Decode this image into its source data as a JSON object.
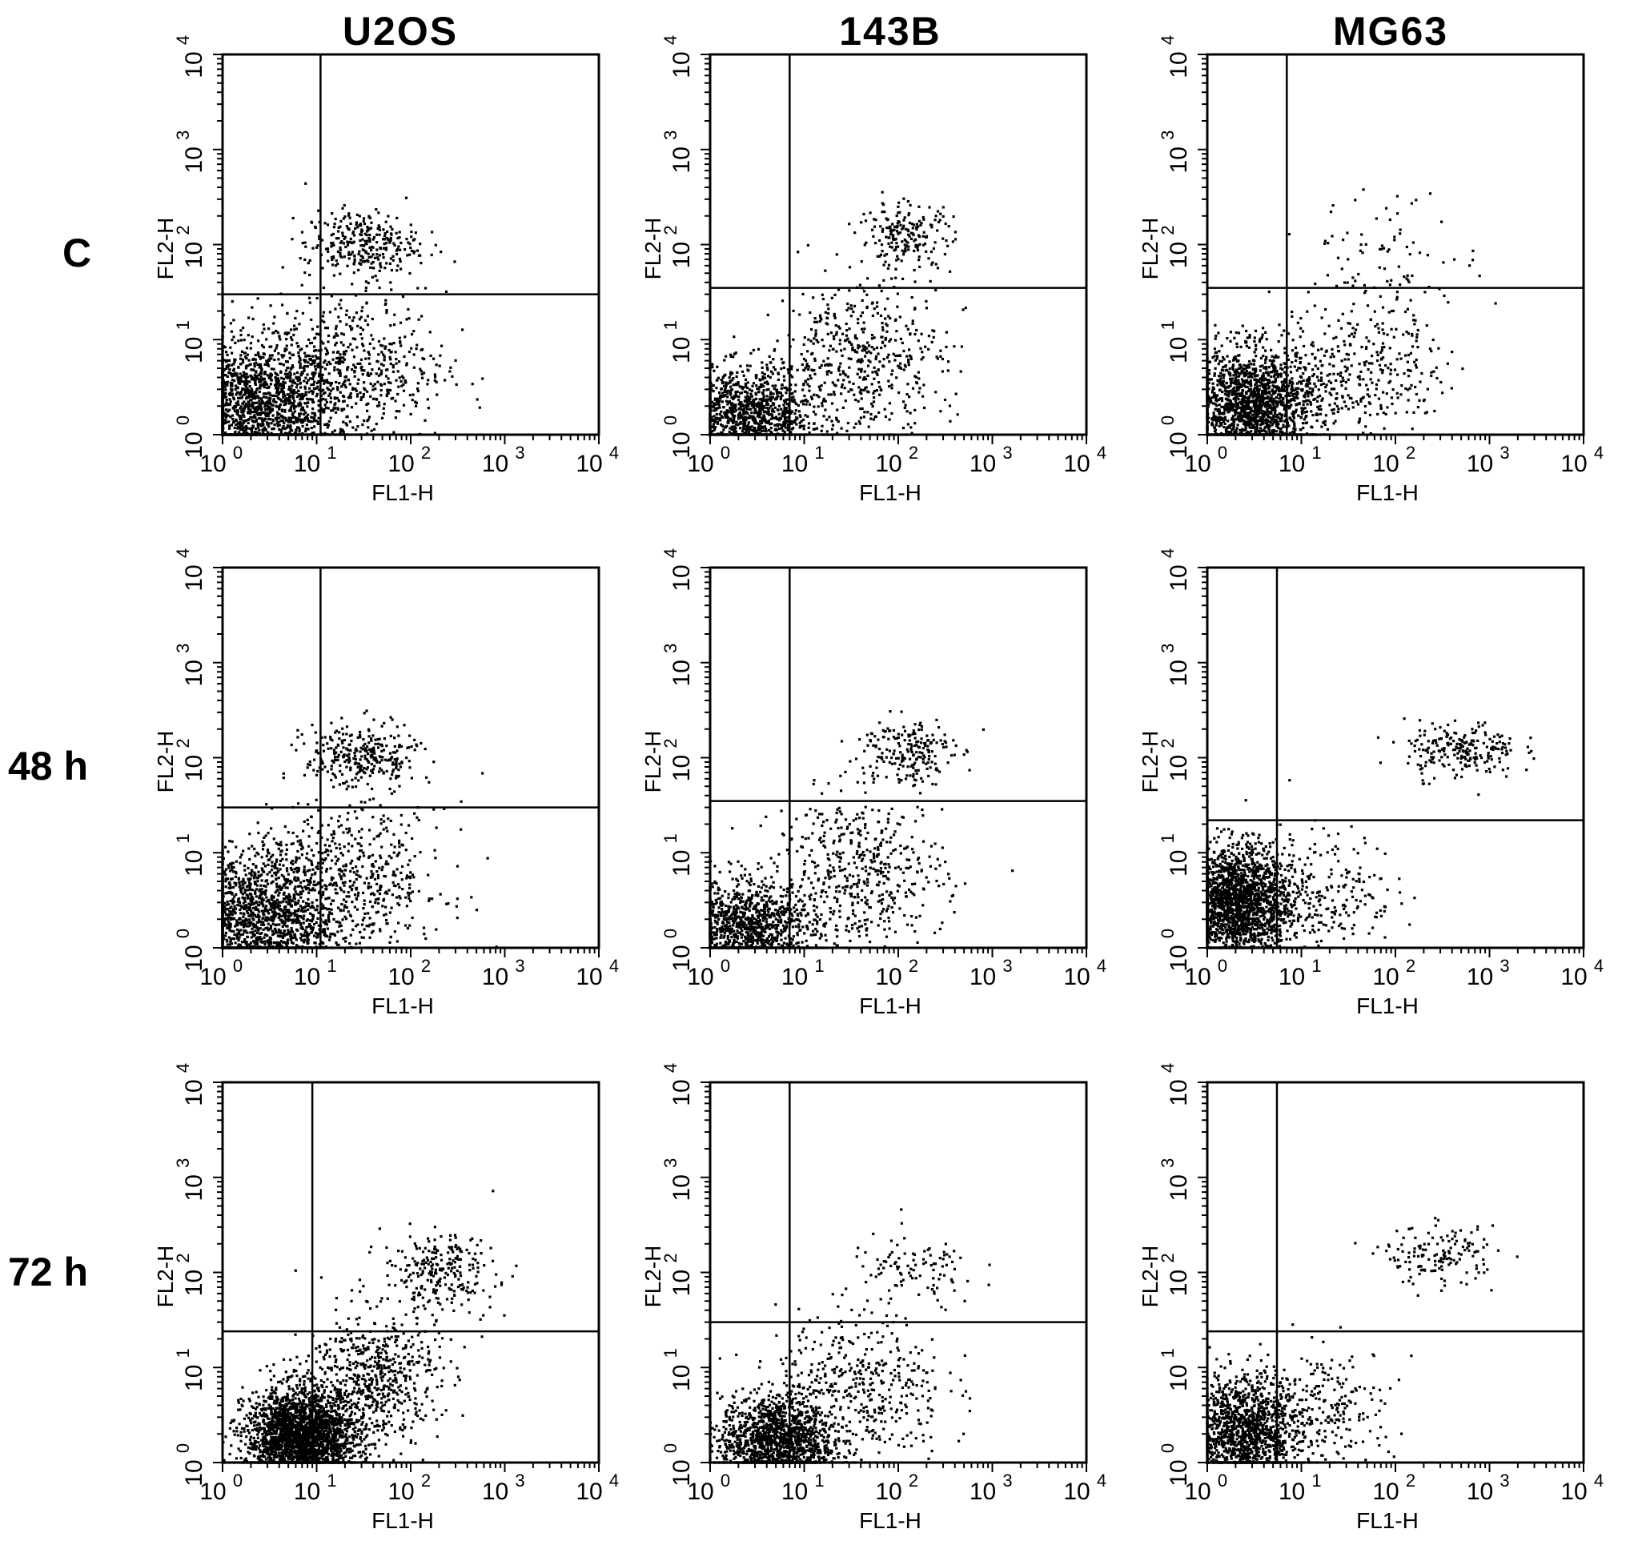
{
  "figure": {
    "column_titles": [
      "U2OS",
      "143B",
      "MG63"
    ],
    "row_labels": [
      "C",
      "48 h",
      "72 h"
    ]
  },
  "chart_data": [
    {
      "type": "scatter",
      "cell_line": "U2OS",
      "condition": "C",
      "xlabel": "FL1-H",
      "ylabel": "FL2-H",
      "xscale": "log",
      "yscale": "log",
      "xlim": [
        1,
        10000
      ],
      "ylim": [
        1,
        10000
      ],
      "x_ticks": [
        "10^0",
        "10^1",
        "10^2",
        "10^3",
        "10^4"
      ],
      "y_ticks": [
        "10^0",
        "10^1",
        "10^2",
        "10^3",
        "10^4"
      ],
      "quadrant_gate": {
        "x": 11,
        "y": 30
      },
      "populations": [
        {
          "center_x": 2,
          "center_y": 1.8,
          "spread_x": 0.45,
          "spread_y": 0.35,
          "n": 1500
        },
        {
          "center_x": 30,
          "center_y": 5,
          "spread_x": 0.45,
          "spread_y": 0.4,
          "n": 450
        },
        {
          "center_x": 30,
          "center_y": 100,
          "spread_x": 0.3,
          "spread_y": 0.18,
          "n": 300
        },
        {
          "center_x": 5,
          "center_y": 4,
          "spread_x": 0.35,
          "spread_y": 0.35,
          "n": 300
        }
      ]
    },
    {
      "type": "scatter",
      "cell_line": "143B",
      "condition": "C",
      "xlabel": "FL1-H",
      "ylabel": "FL2-H",
      "xscale": "log",
      "yscale": "log",
      "xlim": [
        1,
        10000
      ],
      "ylim": [
        1,
        10000
      ],
      "x_ticks": [
        "10^0",
        "10^1",
        "10^2",
        "10^3",
        "10^4"
      ],
      "y_ticks": [
        "10^0",
        "10^1",
        "10^2",
        "10^3",
        "10^4"
      ],
      "quadrant_gate": {
        "x": 7,
        "y": 35
      },
      "populations": [
        {
          "center_x": 2.5,
          "center_y": 1.6,
          "spread_x": 0.35,
          "spread_y": 0.25,
          "n": 1100
        },
        {
          "center_x": 40,
          "center_y": 6,
          "spread_x": 0.45,
          "spread_y": 0.4,
          "n": 500
        },
        {
          "center_x": 120,
          "center_y": 120,
          "spread_x": 0.25,
          "spread_y": 0.18,
          "n": 200
        }
      ]
    },
    {
      "type": "scatter",
      "cell_line": "MG63",
      "condition": "C",
      "xlabel": "FL1-H",
      "ylabel": "FL2-H",
      "xscale": "log",
      "yscale": "log",
      "xlim": [
        1,
        10000
      ],
      "ylim": [
        1,
        10000
      ],
      "x_ticks": [
        "10^0",
        "10^1",
        "10^2",
        "10^3",
        "10^4"
      ],
      "y_ticks": [
        "10^0",
        "10^1",
        "10^2",
        "10^3",
        "10^4"
      ],
      "quadrant_gate": {
        "x": 7,
        "y": 35
      },
      "populations": [
        {
          "center_x": 3,
          "center_y": 2,
          "spread_x": 0.35,
          "spread_y": 0.3,
          "n": 1700
        },
        {
          "center_x": 40,
          "center_y": 5,
          "spread_x": 0.45,
          "spread_y": 0.35,
          "n": 350
        },
        {
          "center_x": 100,
          "center_y": 80,
          "spread_x": 0.45,
          "spread_y": 0.3,
          "n": 80
        }
      ]
    },
    {
      "type": "scatter",
      "cell_line": "U2OS",
      "condition": "48 h",
      "xlabel": "FL1-H",
      "ylabel": "FL2-H",
      "xscale": "log",
      "yscale": "log",
      "xlim": [
        1,
        10000
      ],
      "ylim": [
        1,
        10000
      ],
      "x_ticks": [
        "10^0",
        "10^1",
        "10^2",
        "10^3",
        "10^4"
      ],
      "y_ticks": [
        "10^0",
        "10^1",
        "10^2",
        "10^3",
        "10^4"
      ],
      "quadrant_gate": {
        "x": 11,
        "y": 30
      },
      "populations": [
        {
          "center_x": 2,
          "center_y": 1.8,
          "spread_x": 0.45,
          "spread_y": 0.35,
          "n": 1500
        },
        {
          "center_x": 30,
          "center_y": 5,
          "spread_x": 0.45,
          "spread_y": 0.4,
          "n": 450
        },
        {
          "center_x": 30,
          "center_y": 100,
          "spread_x": 0.3,
          "spread_y": 0.18,
          "n": 300
        },
        {
          "center_x": 5,
          "center_y": 4,
          "spread_x": 0.35,
          "spread_y": 0.35,
          "n": 300
        }
      ]
    },
    {
      "type": "scatter",
      "cell_line": "143B",
      "condition": "48 h",
      "xlabel": "FL1-H",
      "ylabel": "FL2-H",
      "xscale": "log",
      "yscale": "log",
      "xlim": [
        1,
        10000
      ],
      "ylim": [
        1,
        10000
      ],
      "x_ticks": [
        "10^0",
        "10^1",
        "10^2",
        "10^3",
        "10^4"
      ],
      "y_ticks": [
        "10^0",
        "10^1",
        "10^2",
        "10^3",
        "10^4"
      ],
      "quadrant_gate": {
        "x": 7,
        "y": 35
      },
      "populations": [
        {
          "center_x": 2.5,
          "center_y": 1.6,
          "spread_x": 0.35,
          "spread_y": 0.25,
          "n": 1100
        },
        {
          "center_x": 40,
          "center_y": 6,
          "spread_x": 0.45,
          "spread_y": 0.4,
          "n": 500
        },
        {
          "center_x": 120,
          "center_y": 120,
          "spread_x": 0.25,
          "spread_y": 0.18,
          "n": 200
        }
      ]
    },
    {
      "type": "scatter",
      "cell_line": "MG63",
      "condition": "48 h",
      "xlabel": "FL1-H",
      "ylabel": "FL2-H",
      "xscale": "log",
      "yscale": "log",
      "xlim": [
        1,
        10000
      ],
      "ylim": [
        1,
        10000
      ],
      "x_ticks": [
        "10^0",
        "10^1",
        "10^2",
        "10^3",
        "10^4"
      ],
      "y_ticks": [
        "10^0",
        "10^1",
        "10^2",
        "10^3",
        "10^4"
      ],
      "quadrant_gate": {
        "x": 5.5,
        "y": 22
      },
      "populations": [
        {
          "center_x": 2,
          "center_y": 3,
          "spread_x": 0.3,
          "spread_y": 0.3,
          "n": 2000
        },
        {
          "center_x": 20,
          "center_y": 4,
          "spread_x": 0.35,
          "spread_y": 0.3,
          "n": 200
        },
        {
          "center_x": 500,
          "center_y": 120,
          "spread_x": 0.3,
          "spread_y": 0.15,
          "n": 220
        }
      ]
    },
    {
      "type": "scatter",
      "cell_line": "U2OS",
      "condition": "72 h",
      "xlabel": "FL1-H",
      "ylabel": "FL2-H",
      "xscale": "log",
      "yscale": "log",
      "xlim": [
        1,
        10000
      ],
      "ylim": [
        1,
        10000
      ],
      "x_ticks": [
        "10^0",
        "10^1",
        "10^2",
        "10^3",
        "10^4"
      ],
      "y_ticks": [
        "10^0",
        "10^1",
        "10^2",
        "10^3",
        "10^4"
      ],
      "quadrant_gate": {
        "x": 9,
        "y": 24
      },
      "populations": [
        {
          "center_x": 7,
          "center_y": 1.8,
          "spread_x": 0.3,
          "spread_y": 0.25,
          "n": 2500
        },
        {
          "center_x": 40,
          "center_y": 8,
          "spread_x": 0.35,
          "spread_y": 0.35,
          "n": 600
        },
        {
          "center_x": 200,
          "center_y": 100,
          "spread_x": 0.3,
          "spread_y": 0.2,
          "n": 250
        }
      ]
    },
    {
      "type": "scatter",
      "cell_line": "143B",
      "condition": "72 h",
      "xlabel": "FL1-H",
      "ylabel": "FL2-H",
      "xscale": "log",
      "yscale": "log",
      "xlim": [
        1,
        10000
      ],
      "ylim": [
        1,
        10000
      ],
      "x_ticks": [
        "10^0",
        "10^1",
        "10^2",
        "10^3",
        "10^4"
      ],
      "y_ticks": [
        "10^0",
        "10^1",
        "10^2",
        "10^3",
        "10^4"
      ],
      "quadrant_gate": {
        "x": 7,
        "y": 30
      },
      "populations": [
        {
          "center_x": 5,
          "center_y": 1.6,
          "spread_x": 0.3,
          "spread_y": 0.25,
          "n": 1500
        },
        {
          "center_x": 40,
          "center_y": 6,
          "spread_x": 0.45,
          "spread_y": 0.4,
          "n": 450
        },
        {
          "center_x": 150,
          "center_y": 100,
          "spread_x": 0.35,
          "spread_y": 0.2,
          "n": 100
        }
      ]
    },
    {
      "type": "scatter",
      "cell_line": "MG63",
      "condition": "72 h",
      "xlabel": "FL1-H",
      "ylabel": "FL2-H",
      "xscale": "log",
      "yscale": "log",
      "xlim": [
        1,
        10000
      ],
      "ylim": [
        1,
        10000
      ],
      "x_ticks": [
        "10^0",
        "10^1",
        "10^2",
        "10^3",
        "10^4"
      ],
      "y_ticks": [
        "10^0",
        "10^1",
        "10^2",
        "10^3",
        "10^4"
      ],
      "quadrant_gate": {
        "x": 5.5,
        "y": 24
      },
      "populations": [
        {
          "center_x": 2.5,
          "center_y": 2,
          "spread_x": 0.3,
          "spread_y": 0.3,
          "n": 1400
        },
        {
          "center_x": 20,
          "center_y": 4,
          "spread_x": 0.35,
          "spread_y": 0.3,
          "n": 200
        },
        {
          "center_x": 300,
          "center_y": 150,
          "spread_x": 0.3,
          "spread_y": 0.15,
          "n": 150
        }
      ]
    }
  ]
}
